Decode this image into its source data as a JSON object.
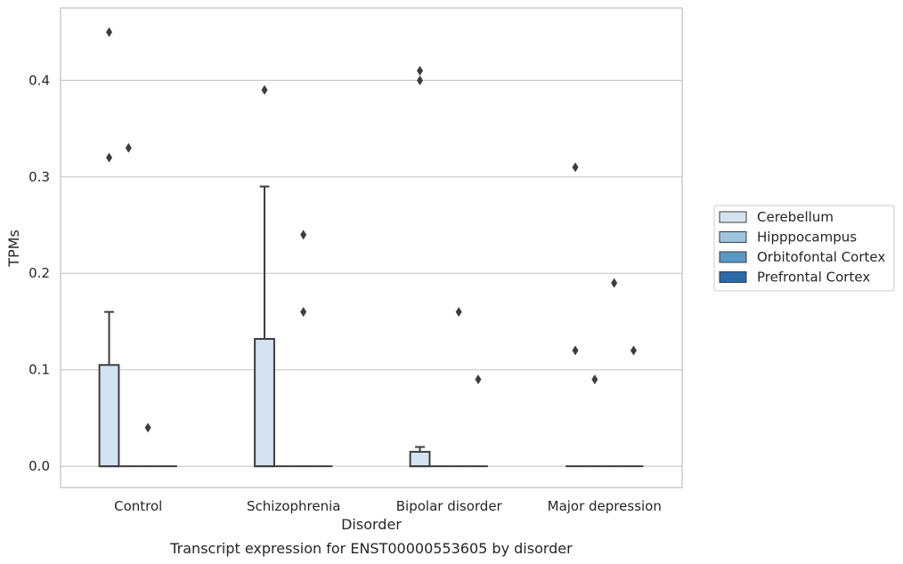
{
  "chart_data": {
    "type": "box",
    "caption": "Transcript expression for ENST00000553605 by disorder",
    "xlabel": "Disorder",
    "ylabel": "TPMs",
    "ylim": [
      -0.022,
      0.475
    ],
    "yticks": [
      0.0,
      0.1,
      0.2,
      0.3,
      0.4
    ],
    "ytick_labels": [
      "0.0",
      "0.1",
      "0.2",
      "0.3",
      "0.4"
    ],
    "grid": "horizontal",
    "legend_position": "right",
    "categories": [
      "Control",
      "Schizophrenia",
      "Bipolar disorder",
      "Major depression"
    ],
    "series": [
      {
        "name": "Cerebellum",
        "color": "#d4e3f1",
        "boxes": [
          {
            "min": 0.0,
            "q1": 0.0,
            "median": 0.0,
            "q3": 0.105,
            "max": 0.16,
            "outliers": [
              0.45,
              0.32
            ]
          },
          {
            "min": 0.0,
            "q1": 0.0,
            "median": 0.0,
            "q3": 0.132,
            "max": 0.29,
            "outliers": [
              0.39
            ]
          },
          {
            "min": 0.0,
            "q1": 0.0,
            "median": 0.0,
            "q3": 0.015,
            "max": 0.02,
            "outliers": [
              0.41,
              0.4
            ]
          },
          {
            "min": 0.0,
            "q1": 0.0,
            "median": 0.0,
            "q3": 0.0,
            "max": 0.0,
            "outliers": [
              0.31,
              0.12
            ]
          }
        ]
      },
      {
        "name": "Hipppocampus",
        "color": "#9ec4de",
        "boxes": [
          {
            "min": 0.0,
            "q1": 0.0,
            "median": 0.0,
            "q3": 0.0,
            "max": 0.0,
            "outliers": [
              0.33
            ]
          },
          {
            "min": 0.0,
            "q1": 0.0,
            "median": 0.0,
            "q3": 0.0,
            "max": 0.0,
            "outliers": []
          },
          {
            "min": 0.0,
            "q1": 0.0,
            "median": 0.0,
            "q3": 0.0,
            "max": 0.0,
            "outliers": []
          },
          {
            "min": 0.0,
            "q1": 0.0,
            "median": 0.0,
            "q3": 0.0,
            "max": 0.0,
            "outliers": [
              0.09
            ]
          }
        ]
      },
      {
        "name": "Orbitofontal Cortex",
        "color": "#5a98c4",
        "boxes": [
          {
            "min": 0.0,
            "q1": 0.0,
            "median": 0.0,
            "q3": 0.0,
            "max": 0.0,
            "outliers": [
              0.04
            ]
          },
          {
            "min": 0.0,
            "q1": 0.0,
            "median": 0.0,
            "q3": 0.0,
            "max": 0.0,
            "outliers": [
              0.24,
              0.16
            ]
          },
          {
            "min": 0.0,
            "q1": 0.0,
            "median": 0.0,
            "q3": 0.0,
            "max": 0.0,
            "outliers": [
              0.16
            ]
          },
          {
            "min": 0.0,
            "q1": 0.0,
            "median": 0.0,
            "q3": 0.0,
            "max": 0.0,
            "outliers": [
              0.19
            ]
          }
        ]
      },
      {
        "name": "Prefrontal Cortex",
        "color": "#2b69a8",
        "boxes": [
          {
            "min": 0.0,
            "q1": 0.0,
            "median": 0.0,
            "q3": 0.0,
            "max": 0.0,
            "outliers": []
          },
          {
            "min": 0.0,
            "q1": 0.0,
            "median": 0.0,
            "q3": 0.0,
            "max": 0.0,
            "outliers": []
          },
          {
            "min": 0.0,
            "q1": 0.0,
            "median": 0.0,
            "q3": 0.0,
            "max": 0.0,
            "outliers": [
              0.09
            ]
          },
          {
            "min": 0.0,
            "q1": 0.0,
            "median": 0.0,
            "q3": 0.0,
            "max": 0.0,
            "outliers": [
              0.12
            ]
          }
        ]
      }
    ]
  }
}
